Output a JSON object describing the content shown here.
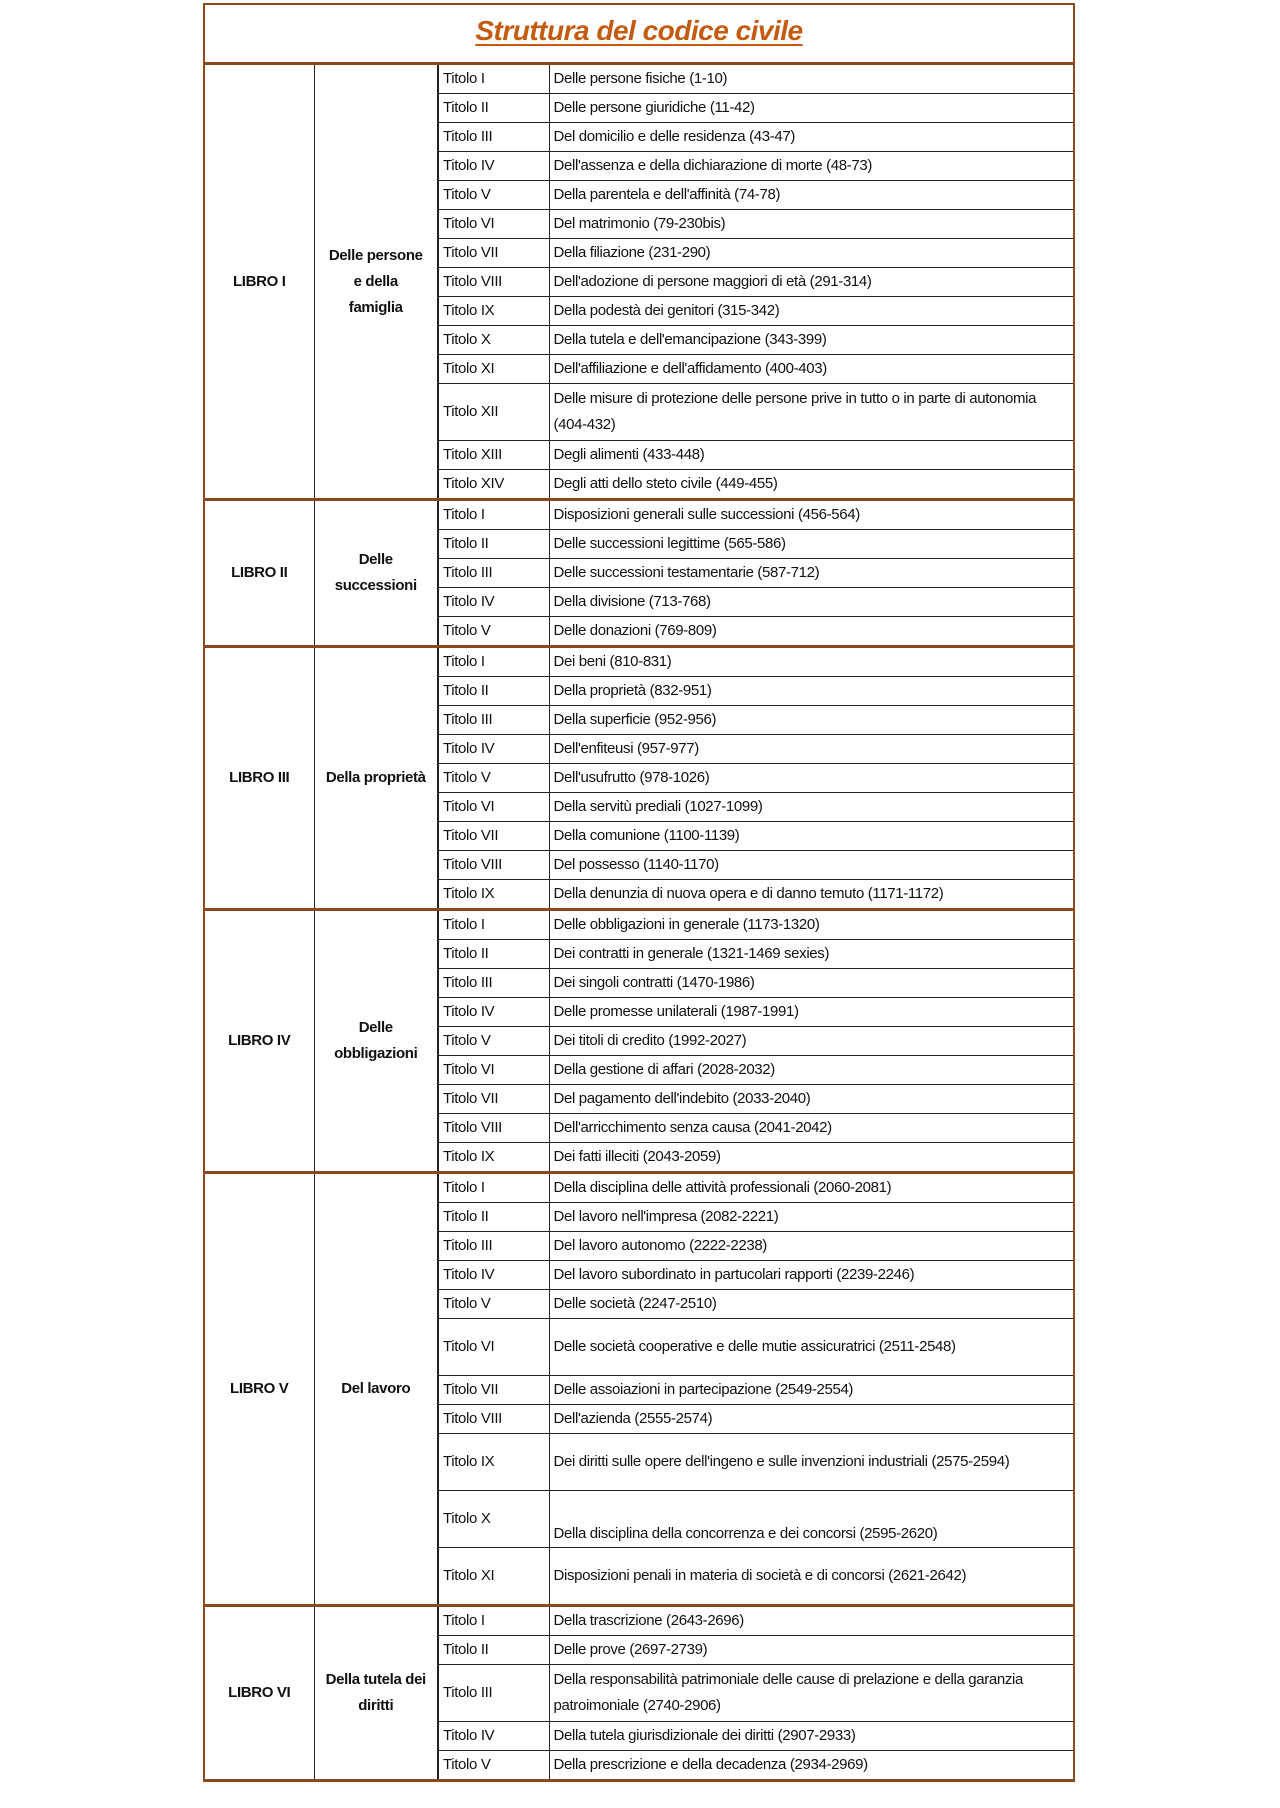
{
  "title": "Struttura del codice civile",
  "accent_color": "#c55a11",
  "border_color": "#8b4a1e",
  "books": [
    {
      "libro": "LIBRO I",
      "nome": "Delle persone e della famiglia",
      "titoli": [
        {
          "t": "Titolo I",
          "d": "Delle persone fisiche (1-10)"
        },
        {
          "t": "Titolo II",
          "d": "Delle persone giuridiche (11-42)"
        },
        {
          "t": "Titolo III",
          "d": "Del domicilio e delle residenza (43-47)"
        },
        {
          "t": "Titolo IV",
          "d": "Dell'assenza e della dichiarazione di morte (48-73)"
        },
        {
          "t": "Titolo V",
          "d": "Della parentela e dell'affinità (74-78)"
        },
        {
          "t": "Titolo VI",
          "d": "Del matrimonio (79-230bis)"
        },
        {
          "t": "Titolo VII",
          "d": "Della filiazione (231-290)"
        },
        {
          "t": "Titolo VIII",
          "d": "Dell'adozione di persone maggiori di età (291-314)"
        },
        {
          "t": "Titolo IX",
          "d": "Della podestà dei genitori (315-342)"
        },
        {
          "t": "Titolo X",
          "d": "Della tutela e dell'emancipazione (343-399)"
        },
        {
          "t": "Titolo XI",
          "d": "Dell'affiliazione e dell'affidamento (400-403)"
        },
        {
          "t": "Titolo XII",
          "d": "Delle misure di protezione delle persone prive in tutto o in parte di autonomia (404-432)"
        },
        {
          "t": "Titolo XIII",
          "d": "Degli alimenti (433-448)"
        },
        {
          "t": "Titolo XIV",
          "d": "Degli atti dello steto civile (449-455)"
        }
      ]
    },
    {
      "libro": "LIBRO II",
      "nome": "Delle successioni",
      "titoli": [
        {
          "t": "Titolo I",
          "d": "Disposizioni generali sulle successioni (456-564)"
        },
        {
          "t": "Titolo II",
          "d": "Delle successioni legittime (565-586)"
        },
        {
          "t": "Titolo III",
          "d": "Delle successioni testamentarie (587-712)"
        },
        {
          "t": "Titolo IV",
          "d": "Della divisione (713-768)"
        },
        {
          "t": "Titolo V",
          "d": "Delle donazioni (769-809)"
        }
      ]
    },
    {
      "libro": "LIBRO III",
      "nome": "Della proprietà",
      "titoli": [
        {
          "t": "Titolo I",
          "d": "Dei beni (810-831)"
        },
        {
          "t": "Titolo II",
          "d": "Della proprietà (832-951)"
        },
        {
          "t": "Titolo III",
          "d": "Della superficie (952-956)"
        },
        {
          "t": "Titolo IV",
          "d": "Dell'enfiteusi (957-977)"
        },
        {
          "t": "Titolo V",
          "d": "Dell'usufrutto (978-1026)"
        },
        {
          "t": "Titolo VI",
          "d": "Della servitù prediali (1027-1099)"
        },
        {
          "t": "Titolo VII",
          "d": "Della comunione (1100-1139)"
        },
        {
          "t": "Titolo VIII",
          "d": "Del possesso (1140-1170)"
        },
        {
          "t": "Titolo IX",
          "d": "Della denunzia di nuova opera e di danno temuto (1171-1172)"
        }
      ]
    },
    {
      "libro": "LIBRO IV",
      "nome": "Delle obbligazioni",
      "titoli": [
        {
          "t": "Titolo I",
          "d": "Delle obbligazioni in generale (1173-1320)"
        },
        {
          "t": "Titolo II",
          "d": "Dei contratti in generale (1321-1469 sexies)"
        },
        {
          "t": "Titolo III",
          "d": "Dei singoli contratti (1470-1986)"
        },
        {
          "t": "Titolo IV",
          "d": "Delle promesse unilaterali (1987-1991)"
        },
        {
          "t": "Titolo V",
          "d": "Dei titoli di credito (1992-2027)"
        },
        {
          "t": "Titolo VI",
          "d": "Della gestione di affari (2028-2032)"
        },
        {
          "t": "Titolo VII",
          "d": "Del pagamento dell'indebito (2033-2040)"
        },
        {
          "t": "Titolo VIII",
          "d": "Dell'arricchimento senza causa (2041-2042)"
        },
        {
          "t": "Titolo IX",
          "d": "Dei fatti illeciti (2043-2059)"
        }
      ]
    },
    {
      "libro": "LIBRO V",
      "nome": "Del lavoro",
      "titoli": [
        {
          "t": "Titolo I",
          "d": "Della disciplina delle attività professionali (2060-2081)"
        },
        {
          "t": "Titolo II",
          "d": "Del lavoro nell'impresa (2082-2221)"
        },
        {
          "t": "Titolo III",
          "d": "Del lavoro autonomo (2222-2238)"
        },
        {
          "t": "Titolo IV",
          "d": "Del lavoro subordinato in partucolari rapporti (2239-2246)"
        },
        {
          "t": "Titolo V",
          "d": "Delle società (2247-2510)"
        },
        {
          "t": "Titolo VI",
          "d": "Delle società cooperative e delle mutie assicuratrici (2511-2548)"
        },
        {
          "t": "Titolo VII",
          "d": "Delle assoiazioni in partecipazione (2549-2554)"
        },
        {
          "t": "Titolo VIII",
          "d": "Dell'azienda (2555-2574)"
        },
        {
          "t": "Titolo IX",
          "d": "Dei diritti sulle opere dell'ingeno e sulle invenzioni industriali (2575-2594)"
        },
        {
          "t": "Titolo X",
          "d": "Della disciplina della concorrenza e dei concorsi (2595-2620)"
        },
        {
          "t": "Titolo XI",
          "d": "Disposizioni penali in materia di società e di concorsi (2621-2642)"
        }
      ]
    },
    {
      "libro": "LIBRO VI",
      "nome": "Della tutela dei diritti",
      "titoli": [
        {
          "t": "Titolo I",
          "d": "Della trascrizione (2643-2696)"
        },
        {
          "t": "Titolo II",
          "d": "Delle prove (2697-2739)"
        },
        {
          "t": "Titolo III",
          "d": "Della responsabilità patrimoniale delle cause di prelazione e della garanzia patroimoniale (2740-2906)"
        },
        {
          "t": "Titolo IV",
          "d": "Della tutela giurisdizionale dei diritti (2907-2933)"
        },
        {
          "t": "Titolo V",
          "d": "Della prescrizione e della decadenza (2934-2969)"
        }
      ]
    }
  ]
}
